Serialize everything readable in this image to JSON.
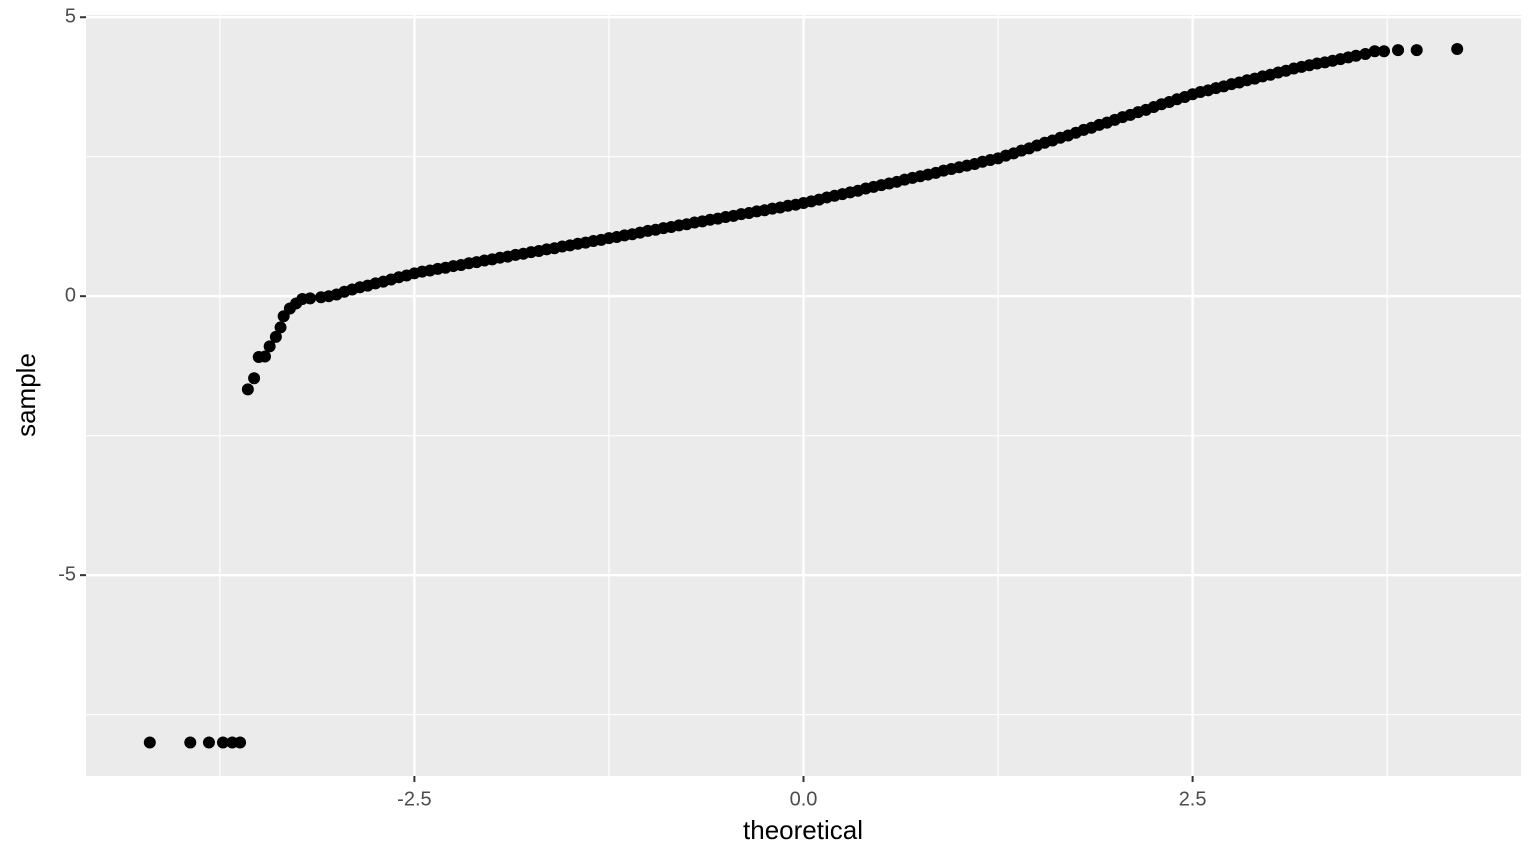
{
  "chart_data": {
    "type": "scatter",
    "xlabel": "theoretical",
    "ylabel": "sample",
    "x": [
      -4.2,
      -3.94,
      -3.82,
      -3.73,
      -3.67,
      -3.62,
      -3.57,
      -3.53,
      -3.5,
      -3.46,
      -3.43,
      -3.39,
      -3.36,
      -3.34,
      -3.3,
      -3.26,
      -3.22,
      -3.17,
      -3.1,
      -3.05,
      -3.0,
      -2.95,
      -2.9,
      -2.85,
      -2.8,
      -2.75,
      -2.7,
      -2.65,
      -2.6,
      -2.55,
      -2.5,
      -2.45,
      -2.4,
      -2.35,
      -2.3,
      -2.25,
      -2.2,
      -2.15,
      -2.1,
      -2.05,
      -2.0,
      -1.95,
      -1.9,
      -1.85,
      -1.8,
      -1.75,
      -1.7,
      -1.65,
      -1.6,
      -1.55,
      -1.5,
      -1.45,
      -1.4,
      -1.35,
      -1.3,
      -1.25,
      -1.2,
      -1.15,
      -1.1,
      -1.05,
      -1.0,
      -0.95,
      -0.9,
      -0.85,
      -0.8,
      -0.75,
      -0.7,
      -0.65,
      -0.6,
      -0.55,
      -0.5,
      -0.45,
      -0.4,
      -0.35,
      -0.3,
      -0.25,
      -0.2,
      -0.15,
      -0.1,
      -0.05,
      0.0,
      0.05,
      0.1,
      0.15,
      0.2,
      0.25,
      0.3,
      0.35,
      0.4,
      0.45,
      0.5,
      0.55,
      0.6,
      0.65,
      0.7,
      0.75,
      0.8,
      0.85,
      0.9,
      0.95,
      1.0,
      1.05,
      1.1,
      1.15,
      1.2,
      1.25,
      1.3,
      1.35,
      1.4,
      1.45,
      1.5,
      1.55,
      1.6,
      1.65,
      1.7,
      1.75,
      1.8,
      1.85,
      1.9,
      1.95,
      2.0,
      2.05,
      2.1,
      2.15,
      2.2,
      2.25,
      2.3,
      2.35,
      2.4,
      2.45,
      2.5,
      2.55,
      2.6,
      2.65,
      2.7,
      2.75,
      2.8,
      2.85,
      2.9,
      2.95,
      3.0,
      3.05,
      3.1,
      3.15,
      3.2,
      3.25,
      3.3,
      3.35,
      3.4,
      3.45,
      3.5,
      3.55,
      3.61,
      3.67,
      3.73,
      3.82,
      3.94,
      4.2
    ],
    "values": [
      -8,
      -8,
      -8,
      -8,
      -8,
      -8,
      -1.67,
      -1.47,
      -1.09,
      -1.08,
      -0.9,
      -0.73,
      -0.56,
      -0.36,
      -0.22,
      -0.13,
      -0.05,
      -0.04,
      -0.02,
      0.0,
      0.03,
      0.08,
      0.12,
      0.16,
      0.19,
      0.23,
      0.26,
      0.3,
      0.34,
      0.37,
      0.41,
      0.44,
      0.46,
      0.49,
      0.51,
      0.54,
      0.56,
      0.59,
      0.61,
      0.64,
      0.66,
      0.69,
      0.71,
      0.74,
      0.76,
      0.79,
      0.81,
      0.84,
      0.86,
      0.89,
      0.91,
      0.94,
      0.96,
      0.99,
      1.01,
      1.04,
      1.06,
      1.09,
      1.11,
      1.14,
      1.17,
      1.19,
      1.22,
      1.24,
      1.27,
      1.29,
      1.32,
      1.34,
      1.37,
      1.39,
      1.42,
      1.44,
      1.47,
      1.49,
      1.52,
      1.54,
      1.57,
      1.59,
      1.62,
      1.64,
      1.67,
      1.7,
      1.73,
      1.77,
      1.8,
      1.83,
      1.86,
      1.89,
      1.93,
      1.96,
      1.99,
      2.02,
      2.05,
      2.09,
      2.12,
      2.15,
      2.18,
      2.21,
      2.25,
      2.28,
      2.31,
      2.34,
      2.37,
      2.41,
      2.44,
      2.47,
      2.52,
      2.56,
      2.61,
      2.65,
      2.7,
      2.75,
      2.79,
      2.84,
      2.88,
      2.93,
      2.98,
      3.02,
      3.07,
      3.11,
      3.16,
      3.21,
      3.25,
      3.3,
      3.34,
      3.39,
      3.44,
      3.48,
      3.53,
      3.57,
      3.62,
      3.66,
      3.69,
      3.73,
      3.76,
      3.8,
      3.83,
      3.87,
      3.9,
      3.94,
      3.97,
      4.01,
      4.04,
      4.08,
      4.11,
      4.14,
      4.17,
      4.19,
      4.22,
      4.25,
      4.28,
      4.31,
      4.34,
      4.39,
      4.39,
      4.41,
      4.41,
      4.43
    ],
    "color": "#000000",
    "xlim": [
      -4.61,
      4.61
    ],
    "xticks": [
      -2.5,
      {
        "value": 0,
        "label": "0.0"
      },
      2.5
    ],
    "ylim": [
      -8.6,
      5.04
    ],
    "yticks": [
      -5,
      0,
      5
    ],
    "grid": true
  }
}
